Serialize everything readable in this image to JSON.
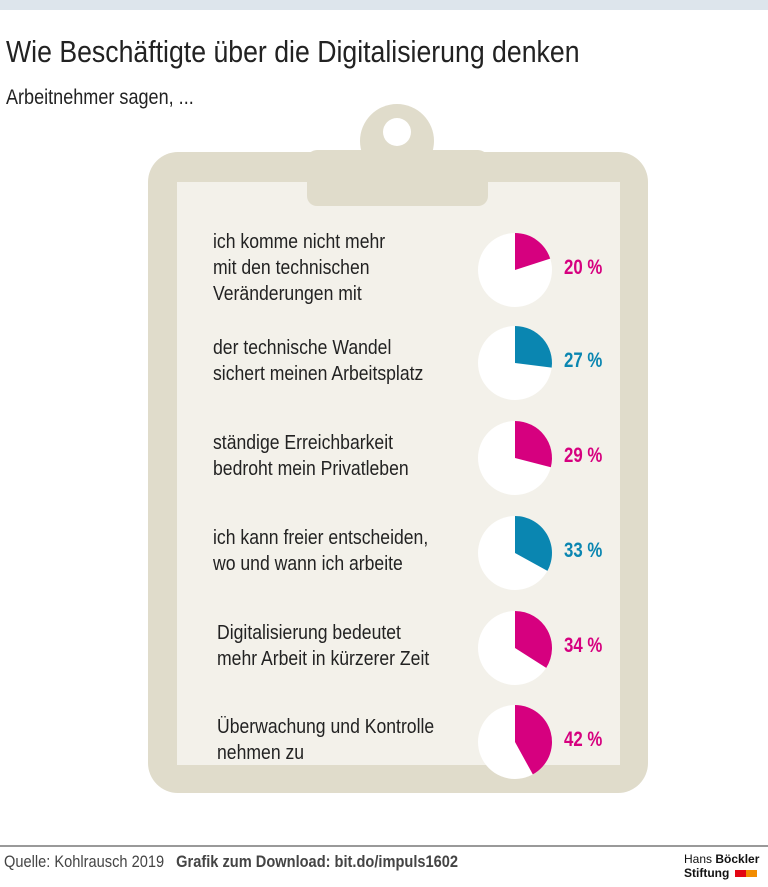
{
  "header": {
    "title": "Wie Beschäftigte über die Digitalisierung denken",
    "subtitle": "Arbeitnehmer sagen, ..."
  },
  "chart_data": {
    "type": "pie",
    "title": "Wie Beschäftigte über die Digitalisierung denken",
    "subtitle": "Arbeitnehmer sagen, ...",
    "items": [
      {
        "label": "ich komme nicht mehr\nmit den technischen\nVeränderungen mit",
        "value": 20,
        "display": "20 %",
        "color": "#d6007f"
      },
      {
        "label": "der technische Wandel\nsichert meinen Arbeitsplatz",
        "value": 27,
        "display": "27 %",
        "color": "#0a86b1"
      },
      {
        "label": "ständige Erreichbarkeit\nbedroht mein Privatleben",
        "value": 29,
        "display": "29 %",
        "color": "#d6007f"
      },
      {
        "label": "ich kann freier entscheiden,\nwo und wann ich arbeite",
        "value": 33,
        "display": "33 %",
        "color": "#0a86b1"
      },
      {
        "label": "Digitalisierung bedeutet\nmehr Arbeit in kürzerer Zeit",
        "value": 34,
        "display": "34 %",
        "color": "#d6007f"
      },
      {
        "label": "Überwachung und Kontrolle\nnehmen zu",
        "value": 42,
        "display": "42 %",
        "color": "#d6007f"
      }
    ]
  },
  "footer": {
    "source": "Quelle: Kohlrausch 2019",
    "download": "Grafik zum Download: bit.do/impuls1602",
    "logo_line1a": "Hans",
    "logo_line1b": "Böckler",
    "logo_line2": "Stiftung"
  }
}
